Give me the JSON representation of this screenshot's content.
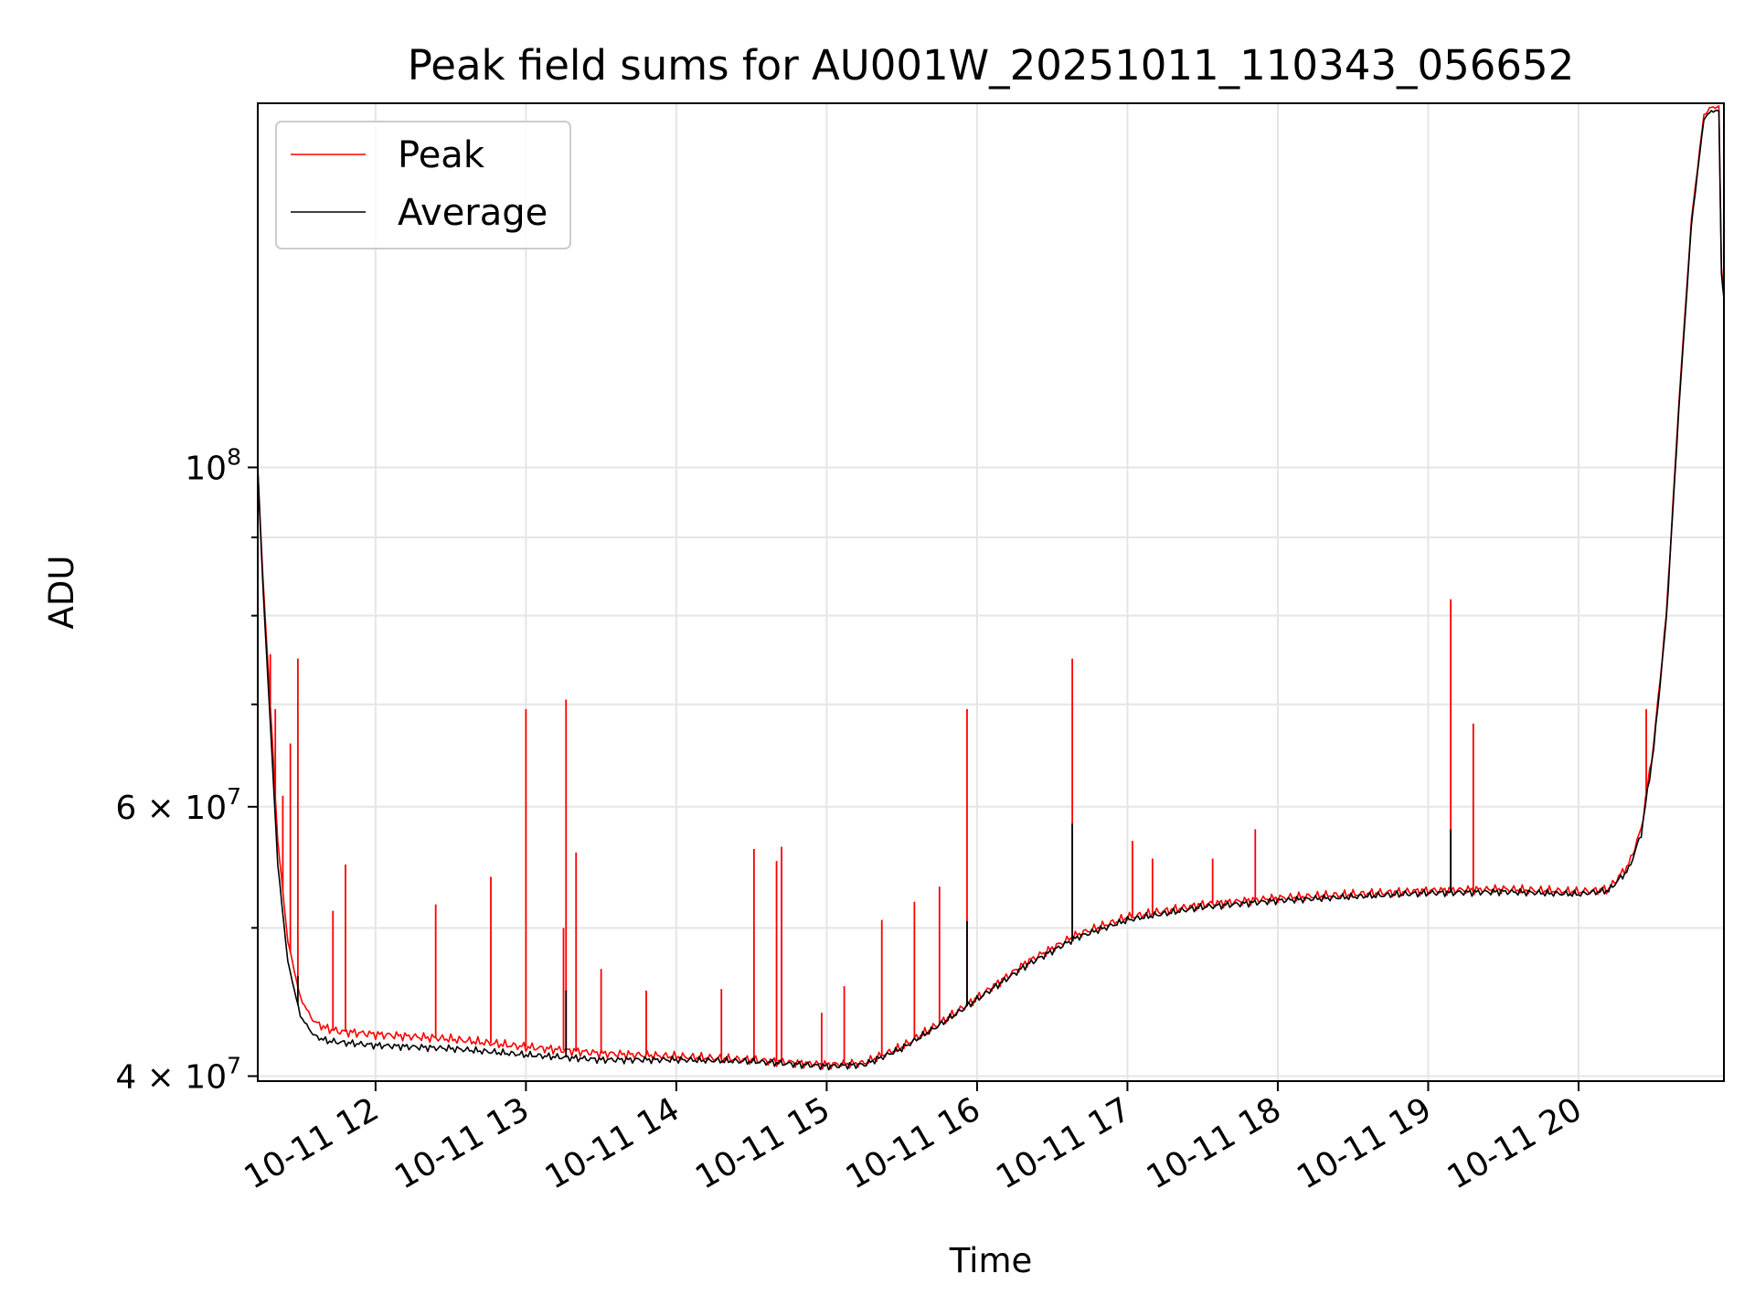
{
  "chart_data": {
    "type": "line",
    "title": "Peak field sums for AU001W_20251011_110343_056652",
    "xlabel": "Time",
    "ylabel": "ADU",
    "y_scale": "log",
    "ylim": [
      39700000,
      173000000
    ],
    "xlim": [
      "2025-10-11T11:13",
      "2025-10-11T20:58"
    ],
    "x_ticks": [
      {
        "t": "2025-10-11T12:00",
        "label": "10-11 12"
      },
      {
        "t": "2025-10-11T13:00",
        "label": "10-11 13"
      },
      {
        "t": "2025-10-11T14:00",
        "label": "10-11 14"
      },
      {
        "t": "2025-10-11T15:00",
        "label": "10-11 15"
      },
      {
        "t": "2025-10-11T16:00",
        "label": "10-11 16"
      },
      {
        "t": "2025-10-11T17:00",
        "label": "10-11 17"
      },
      {
        "t": "2025-10-11T18:00",
        "label": "10-11 18"
      },
      {
        "t": "2025-10-11T19:00",
        "label": "10-11 19"
      },
      {
        "t": "2025-10-11T20:00",
        "label": "10-11 20"
      }
    ],
    "y_ticks": [
      {
        "value": 40000000,
        "mantissa": "4",
        "exponent": "7"
      },
      {
        "value": 60000000,
        "mantissa": "6",
        "exponent": "7"
      },
      {
        "value": 100000000,
        "mantissa": "",
        "exponent": "8"
      }
    ],
    "y_minor_grid": [
      50000000,
      70000000,
      80000000,
      90000000
    ],
    "grid": true,
    "legend": {
      "placement": "upper left"
    },
    "series": [
      {
        "name": "Peak",
        "color": "#ff0000",
        "x": [
          "2025-10-11T11:13",
          "2025-10-11T11:15",
          "2025-10-11T11:18",
          "2025-10-11T11:21",
          "2025-10-11T11:25",
          "2025-10-11T11:30",
          "2025-10-11T11:35",
          "2025-10-11T11:40",
          "2025-10-11T11:45",
          "2025-10-11T12:00",
          "2025-10-11T12:30",
          "2025-10-11T13:00",
          "2025-10-11T13:30",
          "2025-10-11T14:00",
          "2025-10-11T14:30",
          "2025-10-11T15:00",
          "2025-10-11T15:15",
          "2025-10-11T15:30",
          "2025-10-11T15:45",
          "2025-10-11T16:00",
          "2025-10-11T16:20",
          "2025-10-11T16:40",
          "2025-10-11T17:00",
          "2025-10-11T17:30",
          "2025-10-11T18:00",
          "2025-10-11T18:30",
          "2025-10-11T19:00",
          "2025-10-11T19:30",
          "2025-10-11T20:00",
          "2025-10-11T20:12",
          "2025-10-11T20:20",
          "2025-10-11T20:25",
          "2025-10-11T20:30",
          "2025-10-11T20:35",
          "2025-10-11T20:40",
          "2025-10-11T20:45",
          "2025-10-11T20:50",
          "2025-10-11T20:53",
          "2025-10-11T20:56",
          "2025-10-11T20:57",
          "2025-10-11T20:58"
        ],
        "values": [
          100000000,
          85000000,
          70000000,
          57000000,
          49000000,
          45000000,
          43500000,
          43000000,
          42800000,
          42600000,
          42300000,
          41800000,
          41400000,
          41200000,
          41000000,
          40700000,
          40800000,
          41800000,
          43300000,
          45000000,
          47500000,
          49500000,
          50800000,
          51800000,
          52300000,
          52600000,
          52900000,
          53000000,
          52800000,
          53000000,
          55000000,
          58000000,
          66000000,
          80000000,
          110000000,
          145000000,
          170000000,
          172000000,
          172000000,
          135000000,
          130000000
        ],
        "spikes": [
          {
            "t": "2025-10-11T11:18",
            "value": 75500000
          },
          {
            "t": "2025-10-11T11:20",
            "value": 69500000
          },
          {
            "t": "2025-10-11T11:23",
            "value": 61000000
          },
          {
            "t": "2025-10-11T11:26",
            "value": 66000000
          },
          {
            "t": "2025-10-11T11:29",
            "value": 75000000
          },
          {
            "t": "2025-10-11T11:43",
            "value": 51300000
          },
          {
            "t": "2025-10-11T11:48",
            "value": 55000000
          },
          {
            "t": "2025-10-11T12:24",
            "value": 51800000
          },
          {
            "t": "2025-10-11T12:46",
            "value": 54000000
          },
          {
            "t": "2025-10-11T13:00",
            "value": 69500000
          },
          {
            "t": "2025-10-11T13:15",
            "value": 50000000
          },
          {
            "t": "2025-10-11T13:16",
            "value": 70500000
          },
          {
            "t": "2025-10-11T13:20",
            "value": 56000000
          },
          {
            "t": "2025-10-11T13:30",
            "value": 47000000
          },
          {
            "t": "2025-10-11T13:48",
            "value": 45500000
          },
          {
            "t": "2025-10-11T14:18",
            "value": 45600000
          },
          {
            "t": "2025-10-11T14:31",
            "value": 56300000
          },
          {
            "t": "2025-10-11T14:40",
            "value": 55300000
          },
          {
            "t": "2025-10-11T14:42",
            "value": 56500000
          },
          {
            "t": "2025-10-11T14:58",
            "value": 44000000
          },
          {
            "t": "2025-10-11T15:07",
            "value": 45800000
          },
          {
            "t": "2025-10-11T15:22",
            "value": 50600000
          },
          {
            "t": "2025-10-11T15:35",
            "value": 52000000
          },
          {
            "t": "2025-10-11T15:45",
            "value": 53200000
          },
          {
            "t": "2025-10-11T15:56",
            "value": 69500000
          },
          {
            "t": "2025-10-11T16:38",
            "value": 75000000
          },
          {
            "t": "2025-10-11T17:02",
            "value": 57000000
          },
          {
            "t": "2025-10-11T17:10",
            "value": 55500000
          },
          {
            "t": "2025-10-11T17:34",
            "value": 55500000
          },
          {
            "t": "2025-10-11T17:51",
            "value": 58000000
          },
          {
            "t": "2025-10-11T19:09",
            "value": 82000000
          },
          {
            "t": "2025-10-11T19:18",
            "value": 68000000
          },
          {
            "t": "2025-10-11T20:27",
            "value": 69500000
          }
        ]
      },
      {
        "name": "Average",
        "color": "#000000",
        "x": [
          "2025-10-11T11:13",
          "2025-10-11T11:15",
          "2025-10-11T11:18",
          "2025-10-11T11:21",
          "2025-10-11T11:25",
          "2025-10-11T11:30",
          "2025-10-11T11:35",
          "2025-10-11T11:40",
          "2025-10-11T11:45",
          "2025-10-11T12:00",
          "2025-10-11T12:30",
          "2025-10-11T13:00",
          "2025-10-11T13:30",
          "2025-10-11T14:00",
          "2025-10-11T14:30",
          "2025-10-11T15:00",
          "2025-10-11T15:15",
          "2025-10-11T15:30",
          "2025-10-11T15:45",
          "2025-10-11T16:00",
          "2025-10-11T16:20",
          "2025-10-11T16:40",
          "2025-10-11T17:00",
          "2025-10-11T17:30",
          "2025-10-11T18:00",
          "2025-10-11T18:30",
          "2025-10-11T19:00",
          "2025-10-11T19:30",
          "2025-10-11T20:00",
          "2025-10-11T20:12",
          "2025-10-11T20:20",
          "2025-10-11T20:25",
          "2025-10-11T20:30",
          "2025-10-11T20:35",
          "2025-10-11T20:40",
          "2025-10-11T20:45",
          "2025-10-11T20:50",
          "2025-10-11T20:53",
          "2025-10-11T20:56",
          "2025-10-11T20:57",
          "2025-10-11T20:58"
        ],
        "values": [
          100000000,
          84000000,
          68000000,
          55000000,
          47500000,
          43800000,
          42600000,
          42200000,
          42100000,
          41900000,
          41700000,
          41300000,
          41000000,
          41000000,
          40900000,
          40600000,
          40700000,
          41700000,
          43200000,
          44900000,
          47300000,
          49300000,
          50600000,
          51600000,
          52100000,
          52400000,
          52700000,
          52800000,
          52600000,
          52900000,
          54600000,
          57600000,
          65500000,
          79500000,
          109000000,
          144000000,
          169000000,
          171000000,
          171000000,
          134000000,
          129000000
        ],
        "spikes": [
          {
            "t": "2025-10-11T11:29",
            "value": 46500000
          },
          {
            "t": "2025-10-11T13:16",
            "value": 45500000
          },
          {
            "t": "2025-10-11T15:56",
            "value": 50500000
          },
          {
            "t": "2025-10-11T16:38",
            "value": 58500000
          },
          {
            "t": "2025-10-11T19:09",
            "value": 58000000
          }
        ]
      }
    ]
  }
}
